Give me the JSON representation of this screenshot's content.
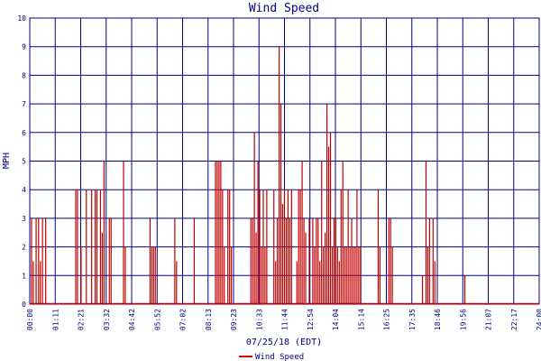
{
  "chart_data": {
    "type": "line",
    "title": "Wind Speed",
    "xlabel": "07/25/18 (EDT)",
    "ylabel": "MPH",
    "ylim": [
      0,
      10
    ],
    "yticks": [
      0,
      1,
      2,
      3,
      4,
      5,
      6,
      7,
      8,
      9,
      10
    ],
    "grid": true,
    "legend": "bottom-left",
    "x_tick_labels": [
      "00:00",
      "01:11",
      "02:21",
      "03:32",
      "04:42",
      "05:52",
      "07:02",
      "08:13",
      "09:23",
      "10:33",
      "11:44",
      "12:54",
      "14:04",
      "15:14",
      "16:25",
      "17:35",
      "18:46",
      "19:56",
      "21:07",
      "22:17",
      "24:00"
    ],
    "series": [
      {
        "name": "Wind Speed",
        "color": "#c00000",
        "x": [
          "00:05",
          "00:10",
          "00:18",
          "00:25",
          "00:30",
          "00:36",
          "00:45",
          "02:10",
          "02:15",
          "02:25",
          "02:40",
          "02:55",
          "03:05",
          "03:10",
          "03:20",
          "03:25",
          "03:30",
          "03:45",
          "03:50",
          "04:25",
          "04:30",
          "05:40",
          "05:45",
          "05:50",
          "05:55",
          "06:50",
          "06:55",
          "07:45",
          "08:45",
          "08:50",
          "08:55",
          "09:00",
          "09:05",
          "09:10",
          "09:20",
          "09:25",
          "09:30",
          "10:25",
          "10:30",
          "10:35",
          "10:40",
          "10:45",
          "10:50",
          "10:55",
          "11:00",
          "11:05",
          "11:10",
          "11:30",
          "11:35",
          "11:40",
          "11:45",
          "11:50",
          "11:55",
          "12:00",
          "12:05",
          "12:10",
          "12:15",
          "12:20",
          "12:35",
          "12:40",
          "12:45",
          "12:50",
          "12:55",
          "13:00",
          "13:10",
          "13:20",
          "13:25",
          "13:30",
          "13:35",
          "13:40",
          "13:45",
          "13:50",
          "13:55",
          "14:00",
          "14:05",
          "14:10",
          "14:15",
          "14:20",
          "14:25",
          "14:30",
          "14:35",
          "14:40",
          "14:45",
          "14:50",
          "14:55",
          "15:00",
          "15:05",
          "15:10",
          "15:15",
          "15:20",
          "15:25",
          "15:30",
          "15:35",
          "16:25",
          "16:30",
          "16:55",
          "17:00",
          "17:05",
          "18:30",
          "18:40",
          "18:45",
          "18:50",
          "19:00",
          "19:05",
          "20:30"
        ],
        "y": [
          3,
          1.5,
          3,
          3,
          1.5,
          3,
          3,
          4,
          4,
          2,
          4,
          4,
          4,
          4,
          4,
          2.5,
          5,
          3,
          3,
          5,
          2,
          3,
          2,
          2,
          2,
          3,
          1.5,
          3,
          5,
          5,
          5,
          5,
          4,
          2,
          4,
          4,
          2,
          3,
          3,
          6,
          2.5,
          5,
          4,
          2,
          4,
          2,
          4,
          4,
          1.5,
          3,
          9,
          7,
          3.5,
          4,
          3,
          4,
          3,
          4,
          1.5,
          4,
          4,
          5,
          3,
          2.5,
          3,
          3,
          2,
          3,
          3,
          1.5,
          5,
          2,
          2.5,
          7,
          5.5,
          6,
          2,
          3,
          3,
          2,
          1.5,
          4,
          5,
          2,
          2,
          4,
          2,
          3,
          2,
          2,
          4,
          2,
          2,
          4,
          2,
          3,
          3,
          2,
          1,
          5,
          2,
          3,
          3,
          1.5,
          1
        ]
      }
    ]
  }
}
